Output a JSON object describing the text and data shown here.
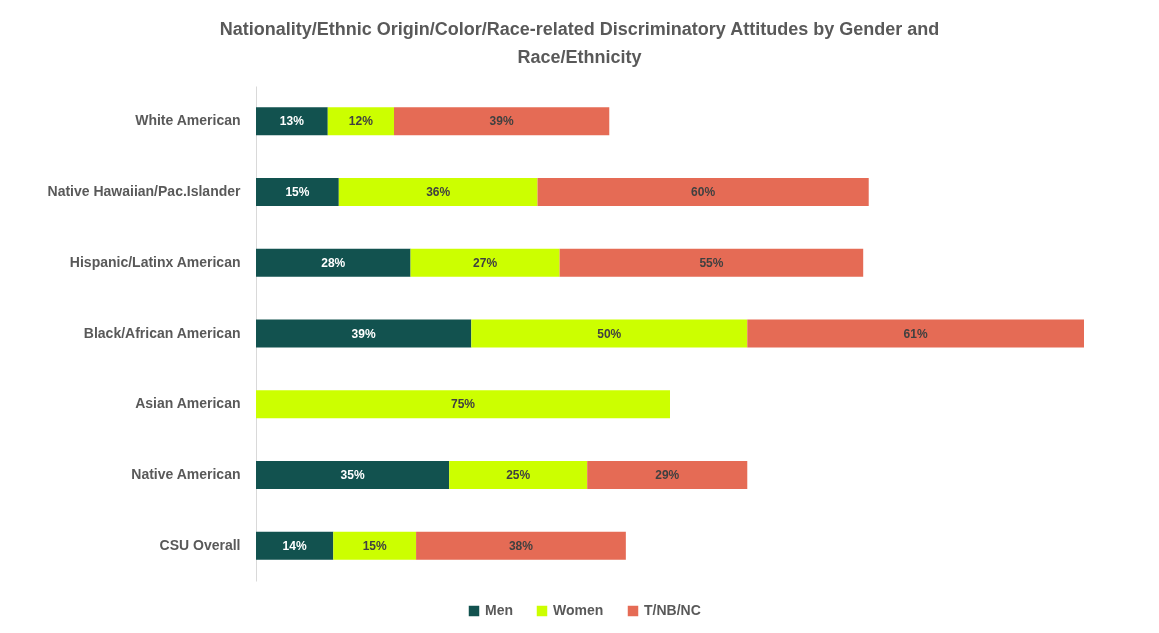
{
  "chart_data": {
    "type": "bar",
    "orientation": "horizontal",
    "stacked": true,
    "title": "Nationality/Ethnic Origin/Color/Race-related Discriminatory Attitudes by Gender and\nRace/Ethnicity",
    "categories": [
      "White American",
      "Native Hawaiian/Pac.Islander",
      "Hispanic/Latinx American",
      "Black/African American",
      "Asian American",
      "Native American",
      "CSU Overall"
    ],
    "series": [
      {
        "name": "Men",
        "color": "#12524f",
        "values": [
          13,
          15,
          28,
          39,
          null,
          35,
          14
        ],
        "value_labels": [
          "13%",
          "15%",
          "28%",
          "39%",
          null,
          "35%",
          "14%"
        ]
      },
      {
        "name": "Women",
        "color": "#ccff00",
        "values": [
          12,
          36,
          27,
          50,
          75,
          25,
          15
        ],
        "value_labels": [
          "12%",
          "36%",
          "27%",
          "50%",
          "75%",
          "25%",
          "15%"
        ]
      },
      {
        "name": "T/NB/NC",
        "color": "#e56b55",
        "values": [
          39,
          60,
          55,
          61,
          null,
          29,
          38
        ],
        "value_labels": [
          "39%",
          "60%",
          "55%",
          "61%",
          null,
          "29%",
          "38%"
        ]
      }
    ],
    "legend": "bottom"
  }
}
